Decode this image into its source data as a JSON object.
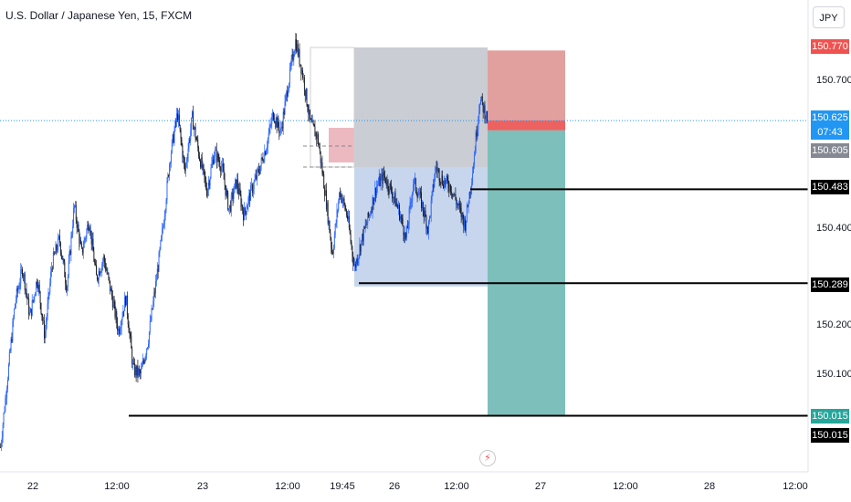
{
  "header": {
    "title": "U.S. Dollar / Japanese Yen, 15, FXCM",
    "currency_button": "JPY"
  },
  "colors": {
    "candle_up": "#2962ff",
    "candle_down": "#131722",
    "sell_zone": "#dc8f8d",
    "buy_zone": "#6fb8b4",
    "gray_box": "#b8bcc4",
    "blue_box": "#b9cce7",
    "level_line": "#000000",
    "last_price_line": "#2196f3"
  },
  "price_tags": {
    "stop": "150.770",
    "last_price": "150.625",
    "countdown": "07:43",
    "entry": "150.605",
    "level_high": "150.483",
    "level_mid": "150.289",
    "target": "150.015",
    "level_low": "150.015"
  },
  "chart_data": {
    "type": "candlestick",
    "title": "U.S. Dollar / Japanese Yen, 15, FXCM",
    "y_ticks": [
      "150.700",
      "150.400",
      "150.200",
      "150.100"
    ],
    "x_ticks": [
      "22",
      "12:00",
      "23",
      "12:00",
      "19:45",
      "26",
      "12:00",
      "27",
      "12:00",
      "28",
      "12:00"
    ],
    "ylim": [
      149.92,
      150.8
    ],
    "horizontal_levels": [
      150.483,
      150.289,
      150.015
    ],
    "last_price": 150.625,
    "short_position": {
      "entry": 150.605,
      "stop": 150.77,
      "target": 150.015
    },
    "price_path": [
      149.95,
      150.1,
      150.25,
      150.32,
      150.22,
      150.3,
      150.18,
      150.33,
      150.38,
      150.28,
      150.45,
      150.35,
      150.42,
      150.3,
      150.34,
      150.27,
      150.19,
      150.26,
      150.11,
      150.1,
      150.17,
      150.28,
      150.4,
      150.55,
      150.64,
      150.52,
      150.63,
      150.55,
      150.48,
      150.56,
      150.53,
      150.44,
      150.5,
      150.43,
      150.48,
      150.52,
      150.57,
      150.64,
      150.6,
      150.7,
      150.79,
      150.72,
      150.62,
      150.59,
      150.48,
      150.35,
      150.48,
      150.43,
      150.32,
      150.38,
      150.43,
      150.49,
      150.51,
      150.48,
      150.44,
      150.38,
      150.5,
      150.46,
      150.4,
      150.53,
      150.5,
      150.49,
      150.45,
      150.41,
      150.52,
      150.67,
      150.63
    ]
  }
}
